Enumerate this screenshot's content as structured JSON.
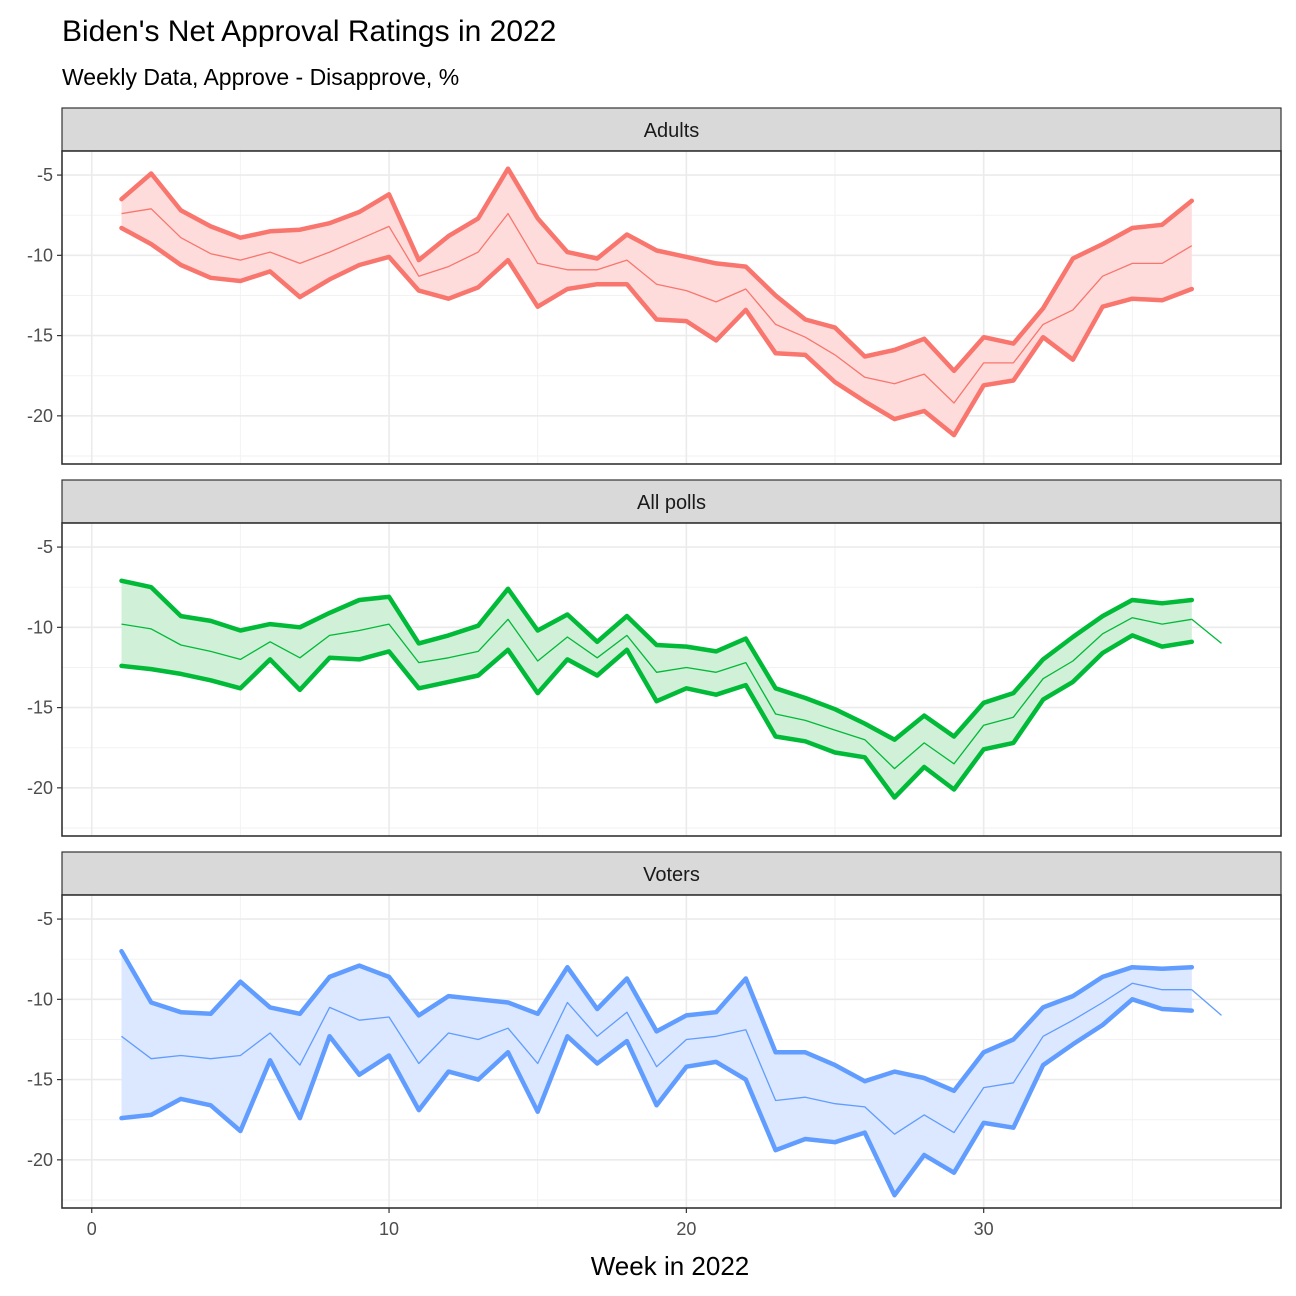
{
  "chart_data": {
    "type": "line",
    "title": "Biden's Net Approval Ratings in 2022",
    "subtitle": "Weekly Data, Approve - Disapprove, %",
    "xlabel": "Week in 2022",
    "ylabel": "",
    "xlim": [
      -1,
      40
    ],
    "ylim": [
      -23,
      -3.5
    ],
    "x_ticks": [
      0,
      10,
      20,
      30
    ],
    "y_ticks": [
      -5,
      -10,
      -15,
      -20
    ],
    "grid": true,
    "facets": [
      {
        "label": "Adults",
        "color": "#f8766d",
        "fill": "#ffdcdc",
        "x": [
          1,
          2,
          3,
          4,
          5,
          6,
          7,
          8,
          9,
          10,
          11,
          12,
          13,
          14,
          15,
          16,
          17,
          18,
          19,
          20,
          21,
          22,
          23,
          24,
          25,
          26,
          27,
          28,
          29,
          30,
          31,
          32,
          33,
          34,
          35,
          36,
          37
        ],
        "upper": [
          -6.5,
          -4.9,
          -7.2,
          -8.2,
          -8.9,
          -8.5,
          -8.4,
          -8.0,
          -7.3,
          -6.2,
          -10.3,
          -8.8,
          -7.7,
          -4.6,
          -7.7,
          -9.8,
          -10.2,
          -8.7,
          -9.7,
          -10.1,
          -10.5,
          -10.7,
          -12.5,
          -14.0,
          -14.5,
          -16.3,
          -15.9,
          -15.2,
          -17.2,
          -15.1,
          -15.5,
          -13.3,
          -10.2,
          -9.3,
          -8.3,
          -8.1,
          -6.6
        ],
        "middle": [
          -7.4,
          -7.1,
          -8.9,
          -9.9,
          -10.3,
          -9.8,
          -10.5,
          -9.8,
          -9.0,
          -8.2,
          -11.3,
          -10.7,
          -9.8,
          -7.4,
          -10.5,
          -10.9,
          -10.9,
          -10.3,
          -11.8,
          -12.2,
          -12.9,
          -12.1,
          -14.3,
          -15.1,
          -16.2,
          -17.6,
          -18.0,
          -17.4,
          -19.2,
          -16.7,
          -16.7,
          -14.3,
          -13.4,
          -11.3,
          -10.5,
          -10.5,
          -9.4
        ],
        "lower": [
          -8.3,
          -9.3,
          -10.6,
          -11.4,
          -11.6,
          -11.0,
          -12.6,
          -11.5,
          -10.6,
          -10.1,
          -12.2,
          -12.7,
          -12.0,
          -10.3,
          -13.2,
          -12.1,
          -11.8,
          -11.8,
          -14.0,
          -14.1,
          -15.3,
          -13.4,
          -16.1,
          -16.2,
          -17.9,
          -19.1,
          -20.2,
          -19.7,
          -21.2,
          -18.1,
          -17.8,
          -15.1,
          -16.5,
          -13.2,
          -12.7,
          -12.8,
          -12.1
        ],
        "extra_middle": []
      },
      {
        "label": "All polls",
        "color": "#00ba38",
        "fill": "#d0f0d8",
        "x": [
          1,
          2,
          3,
          4,
          5,
          6,
          7,
          8,
          9,
          10,
          11,
          12,
          13,
          14,
          15,
          16,
          17,
          18,
          19,
          20,
          21,
          22,
          23,
          24,
          25,
          26,
          27,
          28,
          29,
          30,
          31,
          32,
          33,
          34,
          35,
          36,
          37
        ],
        "upper": [
          -7.1,
          -7.5,
          -9.3,
          -9.6,
          -10.2,
          -9.8,
          -10.0,
          -9.1,
          -8.3,
          -8.1,
          -11.0,
          -10.5,
          -9.9,
          -7.6,
          -10.2,
          -9.2,
          -10.9,
          -9.3,
          -11.1,
          -11.2,
          -11.5,
          -10.7,
          -13.8,
          -14.4,
          -15.1,
          -16.0,
          -17.0,
          -15.5,
          -16.8,
          -14.7,
          -14.1,
          -12.0,
          -10.6,
          -9.3,
          -8.3,
          -8.5,
          -8.3
        ],
        "middle": [
          -9.8,
          -10.1,
          -11.1,
          -11.5,
          -12.0,
          -10.9,
          -11.9,
          -10.5,
          -10.2,
          -9.8,
          -12.2,
          -11.9,
          -11.5,
          -9.5,
          -12.1,
          -10.6,
          -11.9,
          -10.5,
          -12.8,
          -12.5,
          -12.8,
          -12.2,
          -15.4,
          -15.8,
          -16.4,
          -17.0,
          -18.8,
          -17.2,
          -18.5,
          -16.1,
          -15.6,
          -13.2,
          -12.1,
          -10.4,
          -9.4,
          -9.8,
          -9.5
        ],
        "lower": [
          -12.4,
          -12.6,
          -12.9,
          -13.3,
          -13.8,
          -12.0,
          -13.9,
          -11.9,
          -12.0,
          -11.5,
          -13.8,
          -13.4,
          -13.0,
          -11.4,
          -14.1,
          -12.0,
          -13.0,
          -11.4,
          -14.6,
          -13.8,
          -14.2,
          -13.6,
          -16.8,
          -17.1,
          -17.8,
          -18.1,
          -20.6,
          -18.7,
          -20.1,
          -17.6,
          -17.2,
          -14.5,
          -13.4,
          -11.6,
          -10.5,
          -11.2,
          -10.9
        ],
        "extra_middle": [
          [
            37,
            -9.5
          ],
          [
            38,
            -11.0
          ]
        ]
      },
      {
        "label": "Voters",
        "color": "#619cff",
        "fill": "#dbe8ff",
        "x": [
          1,
          2,
          3,
          4,
          5,
          6,
          7,
          8,
          9,
          10,
          11,
          12,
          13,
          14,
          15,
          16,
          17,
          18,
          19,
          20,
          21,
          22,
          23,
          24,
          25,
          26,
          27,
          28,
          29,
          30,
          31,
          32,
          33,
          34,
          35,
          36,
          37
        ],
        "upper": [
          -7.0,
          -10.2,
          -10.8,
          -10.9,
          -8.9,
          -10.5,
          -10.9,
          -8.6,
          -7.9,
          -8.6,
          -11.0,
          -9.8,
          -10.0,
          -10.2,
          -10.9,
          -8.0,
          -10.6,
          -8.7,
          -12.0,
          -11.0,
          -10.8,
          -8.7,
          -13.3,
          -13.3,
          -14.1,
          -15.1,
          -14.5,
          -14.9,
          -15.7,
          -13.3,
          -12.5,
          -10.5,
          -9.8,
          -8.6,
          -8.0,
          -8.1,
          -8.0
        ],
        "middle": [
          -12.3,
          -13.7,
          -13.5,
          -13.7,
          -13.5,
          -12.1,
          -14.1,
          -10.5,
          -11.3,
          -11.1,
          -14.0,
          -12.1,
          -12.5,
          -11.8,
          -14.0,
          -10.2,
          -12.3,
          -10.8,
          -14.2,
          -12.5,
          -12.3,
          -11.9,
          -16.3,
          -16.1,
          -16.5,
          -16.7,
          -18.4,
          -17.2,
          -18.3,
          -15.5,
          -15.2,
          -12.3,
          -11.3,
          -10.2,
          -9.0,
          -9.4,
          -9.4
        ],
        "lower": [
          -17.4,
          -17.2,
          -16.2,
          -16.6,
          -18.2,
          -13.8,
          -17.4,
          -12.3,
          -14.7,
          -13.5,
          -16.9,
          -14.5,
          -15.0,
          -13.3,
          -17.0,
          -12.3,
          -14.0,
          -12.6,
          -16.6,
          -14.2,
          -13.9,
          -15.0,
          -19.4,
          -18.7,
          -18.9,
          -18.3,
          -22.2,
          -19.7,
          -20.8,
          -17.7,
          -18.0,
          -14.1,
          -12.8,
          -11.6,
          -10.0,
          -10.6,
          -10.7
        ],
        "extra_middle": [
          [
            37,
            -9.4
          ],
          [
            38,
            -11.0
          ]
        ]
      }
    ]
  }
}
